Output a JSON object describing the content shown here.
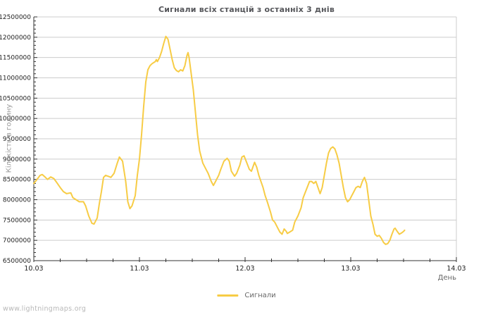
{
  "page": {
    "watermark": "www.lightningmaps.org"
  },
  "chart_data": {
    "type": "line",
    "title": "Сигнали всіх станцій з останніх 3 днів",
    "xlabel": "День",
    "ylabel": "Кількість в годину",
    "legend": {
      "label": "Сигнали",
      "position": "bottom-center"
    },
    "grid": "horizontal",
    "x_range": [
      10,
      14
    ],
    "ylim": [
      6500000,
      12500000
    ],
    "y_tick_step": 500000,
    "y_minor_step": 100000,
    "x_minor_step_days": 0.25,
    "x_ticks": [
      {
        "day": 10,
        "label": "10.03"
      },
      {
        "day": 11,
        "label": "11.03"
      },
      {
        "day": 12,
        "label": "12.03"
      },
      {
        "day": 13,
        "label": "13.03"
      },
      {
        "day": 14,
        "label": "14.03"
      }
    ],
    "colors": {
      "line": "#f7cc45",
      "grid": "#cccccc",
      "border": "#cccccc",
      "axis": "#333333",
      "tick_text": "#222222",
      "title_text": "#55565a",
      "axis_label_text": "#999999",
      "legend_text": "#666666",
      "watermark_text": "#b8b8b8"
    },
    "series": [
      {
        "name": "Сигнали",
        "points": [
          [
            10.0,
            8400000
          ],
          [
            10.03,
            8500000
          ],
          [
            10.06,
            8600000
          ],
          [
            10.08,
            8620000
          ],
          [
            10.11,
            8550000
          ],
          [
            10.13,
            8500000
          ],
          [
            10.16,
            8560000
          ],
          [
            10.19,
            8520000
          ],
          [
            10.21,
            8450000
          ],
          [
            10.25,
            8300000
          ],
          [
            10.28,
            8200000
          ],
          [
            10.31,
            8150000
          ],
          [
            10.35,
            8170000
          ],
          [
            10.37,
            8050000
          ],
          [
            10.4,
            8000000
          ],
          [
            10.43,
            7950000
          ],
          [
            10.47,
            7950000
          ],
          [
            10.49,
            7850000
          ],
          [
            10.52,
            7600000
          ],
          [
            10.55,
            7420000
          ],
          [
            10.57,
            7400000
          ],
          [
            10.6,
            7550000
          ],
          [
            10.62,
            7900000
          ],
          [
            10.64,
            8200000
          ],
          [
            10.66,
            8550000
          ],
          [
            10.68,
            8600000
          ],
          [
            10.71,
            8570000
          ],
          [
            10.73,
            8550000
          ],
          [
            10.76,
            8650000
          ],
          [
            10.79,
            8900000
          ],
          [
            10.81,
            9050000
          ],
          [
            10.84,
            8950000
          ],
          [
            10.87,
            8450000
          ],
          [
            10.89,
            7950000
          ],
          [
            10.91,
            7780000
          ],
          [
            10.93,
            7850000
          ],
          [
            10.96,
            8100000
          ],
          [
            10.98,
            8600000
          ],
          [
            11.0,
            9000000
          ],
          [
            11.02,
            9600000
          ],
          [
            11.04,
            10300000
          ],
          [
            11.06,
            10900000
          ],
          [
            11.08,
            11200000
          ],
          [
            11.1,
            11300000
          ],
          [
            11.12,
            11350000
          ],
          [
            11.15,
            11400000
          ],
          [
            11.16,
            11450000
          ],
          [
            11.17,
            11400000
          ],
          [
            11.19,
            11500000
          ],
          [
            11.21,
            11650000
          ],
          [
            11.23,
            11850000
          ],
          [
            11.25,
            12020000
          ],
          [
            11.27,
            11950000
          ],
          [
            11.29,
            11700000
          ],
          [
            11.31,
            11450000
          ],
          [
            11.33,
            11250000
          ],
          [
            11.35,
            11180000
          ],
          [
            11.37,
            11150000
          ],
          [
            11.39,
            11200000
          ],
          [
            11.41,
            11170000
          ],
          [
            11.43,
            11300000
          ],
          [
            11.45,
            11550000
          ],
          [
            11.46,
            11620000
          ],
          [
            11.47,
            11500000
          ],
          [
            11.49,
            11100000
          ],
          [
            11.51,
            10700000
          ],
          [
            11.53,
            10150000
          ],
          [
            11.55,
            9600000
          ],
          [
            11.57,
            9200000
          ],
          [
            11.6,
            8900000
          ],
          [
            11.63,
            8750000
          ],
          [
            11.65,
            8650000
          ],
          [
            11.68,
            8450000
          ],
          [
            11.7,
            8350000
          ],
          [
            11.72,
            8450000
          ],
          [
            11.75,
            8600000
          ],
          [
            11.77,
            8750000
          ],
          [
            11.8,
            8950000
          ],
          [
            11.83,
            9020000
          ],
          [
            11.85,
            8950000
          ],
          [
            11.87,
            8700000
          ],
          [
            11.9,
            8580000
          ],
          [
            11.92,
            8650000
          ],
          [
            11.95,
            8850000
          ],
          [
            11.97,
            9050000
          ],
          [
            11.99,
            9080000
          ],
          [
            12.01,
            8950000
          ],
          [
            12.04,
            8750000
          ],
          [
            12.06,
            8700000
          ],
          [
            12.08,
            8850000
          ],
          [
            12.09,
            8920000
          ],
          [
            12.11,
            8800000
          ],
          [
            12.13,
            8600000
          ],
          [
            12.15,
            8450000
          ],
          [
            12.17,
            8300000
          ],
          [
            12.19,
            8100000
          ],
          [
            12.21,
            7950000
          ],
          [
            12.24,
            7700000
          ],
          [
            12.26,
            7500000
          ],
          [
            12.28,
            7450000
          ],
          [
            12.31,
            7300000
          ],
          [
            12.33,
            7200000
          ],
          [
            12.35,
            7150000
          ],
          [
            12.37,
            7280000
          ],
          [
            12.39,
            7220000
          ],
          [
            12.4,
            7170000
          ],
          [
            12.42,
            7200000
          ],
          [
            12.45,
            7250000
          ],
          [
            12.47,
            7450000
          ],
          [
            12.5,
            7600000
          ],
          [
            12.53,
            7800000
          ],
          [
            12.55,
            8050000
          ],
          [
            12.58,
            8250000
          ],
          [
            12.61,
            8450000
          ],
          [
            12.63,
            8450000
          ],
          [
            12.65,
            8400000
          ],
          [
            12.67,
            8450000
          ],
          [
            12.69,
            8300000
          ],
          [
            12.71,
            8150000
          ],
          [
            12.73,
            8300000
          ],
          [
            12.75,
            8600000
          ],
          [
            12.77,
            8900000
          ],
          [
            12.79,
            9150000
          ],
          [
            12.81,
            9260000
          ],
          [
            12.83,
            9300000
          ],
          [
            12.85,
            9250000
          ],
          [
            12.87,
            9100000
          ],
          [
            12.89,
            8900000
          ],
          [
            12.91,
            8600000
          ],
          [
            12.93,
            8300000
          ],
          [
            12.95,
            8050000
          ],
          [
            12.97,
            7950000
          ],
          [
            12.99,
            8000000
          ],
          [
            13.01,
            8100000
          ],
          [
            13.03,
            8200000
          ],
          [
            13.05,
            8300000
          ],
          [
            13.07,
            8330000
          ],
          [
            13.09,
            8300000
          ],
          [
            13.11,
            8450000
          ],
          [
            13.13,
            8550000
          ],
          [
            13.15,
            8400000
          ],
          [
            13.17,
            8000000
          ],
          [
            13.19,
            7600000
          ],
          [
            13.21,
            7400000
          ],
          [
            13.23,
            7150000
          ],
          [
            13.25,
            7100000
          ],
          [
            13.27,
            7120000
          ],
          [
            13.29,
            7050000
          ],
          [
            13.31,
            6950000
          ],
          [
            13.33,
            6900000
          ],
          [
            13.35,
            6920000
          ],
          [
            13.37,
            7000000
          ],
          [
            13.39,
            7150000
          ],
          [
            13.41,
            7280000
          ],
          [
            13.42,
            7300000
          ],
          [
            13.44,
            7220000
          ],
          [
            13.46,
            7150000
          ],
          [
            13.48,
            7180000
          ],
          [
            13.5,
            7220000
          ],
          [
            13.51,
            7250000
          ]
        ]
      }
    ]
  }
}
